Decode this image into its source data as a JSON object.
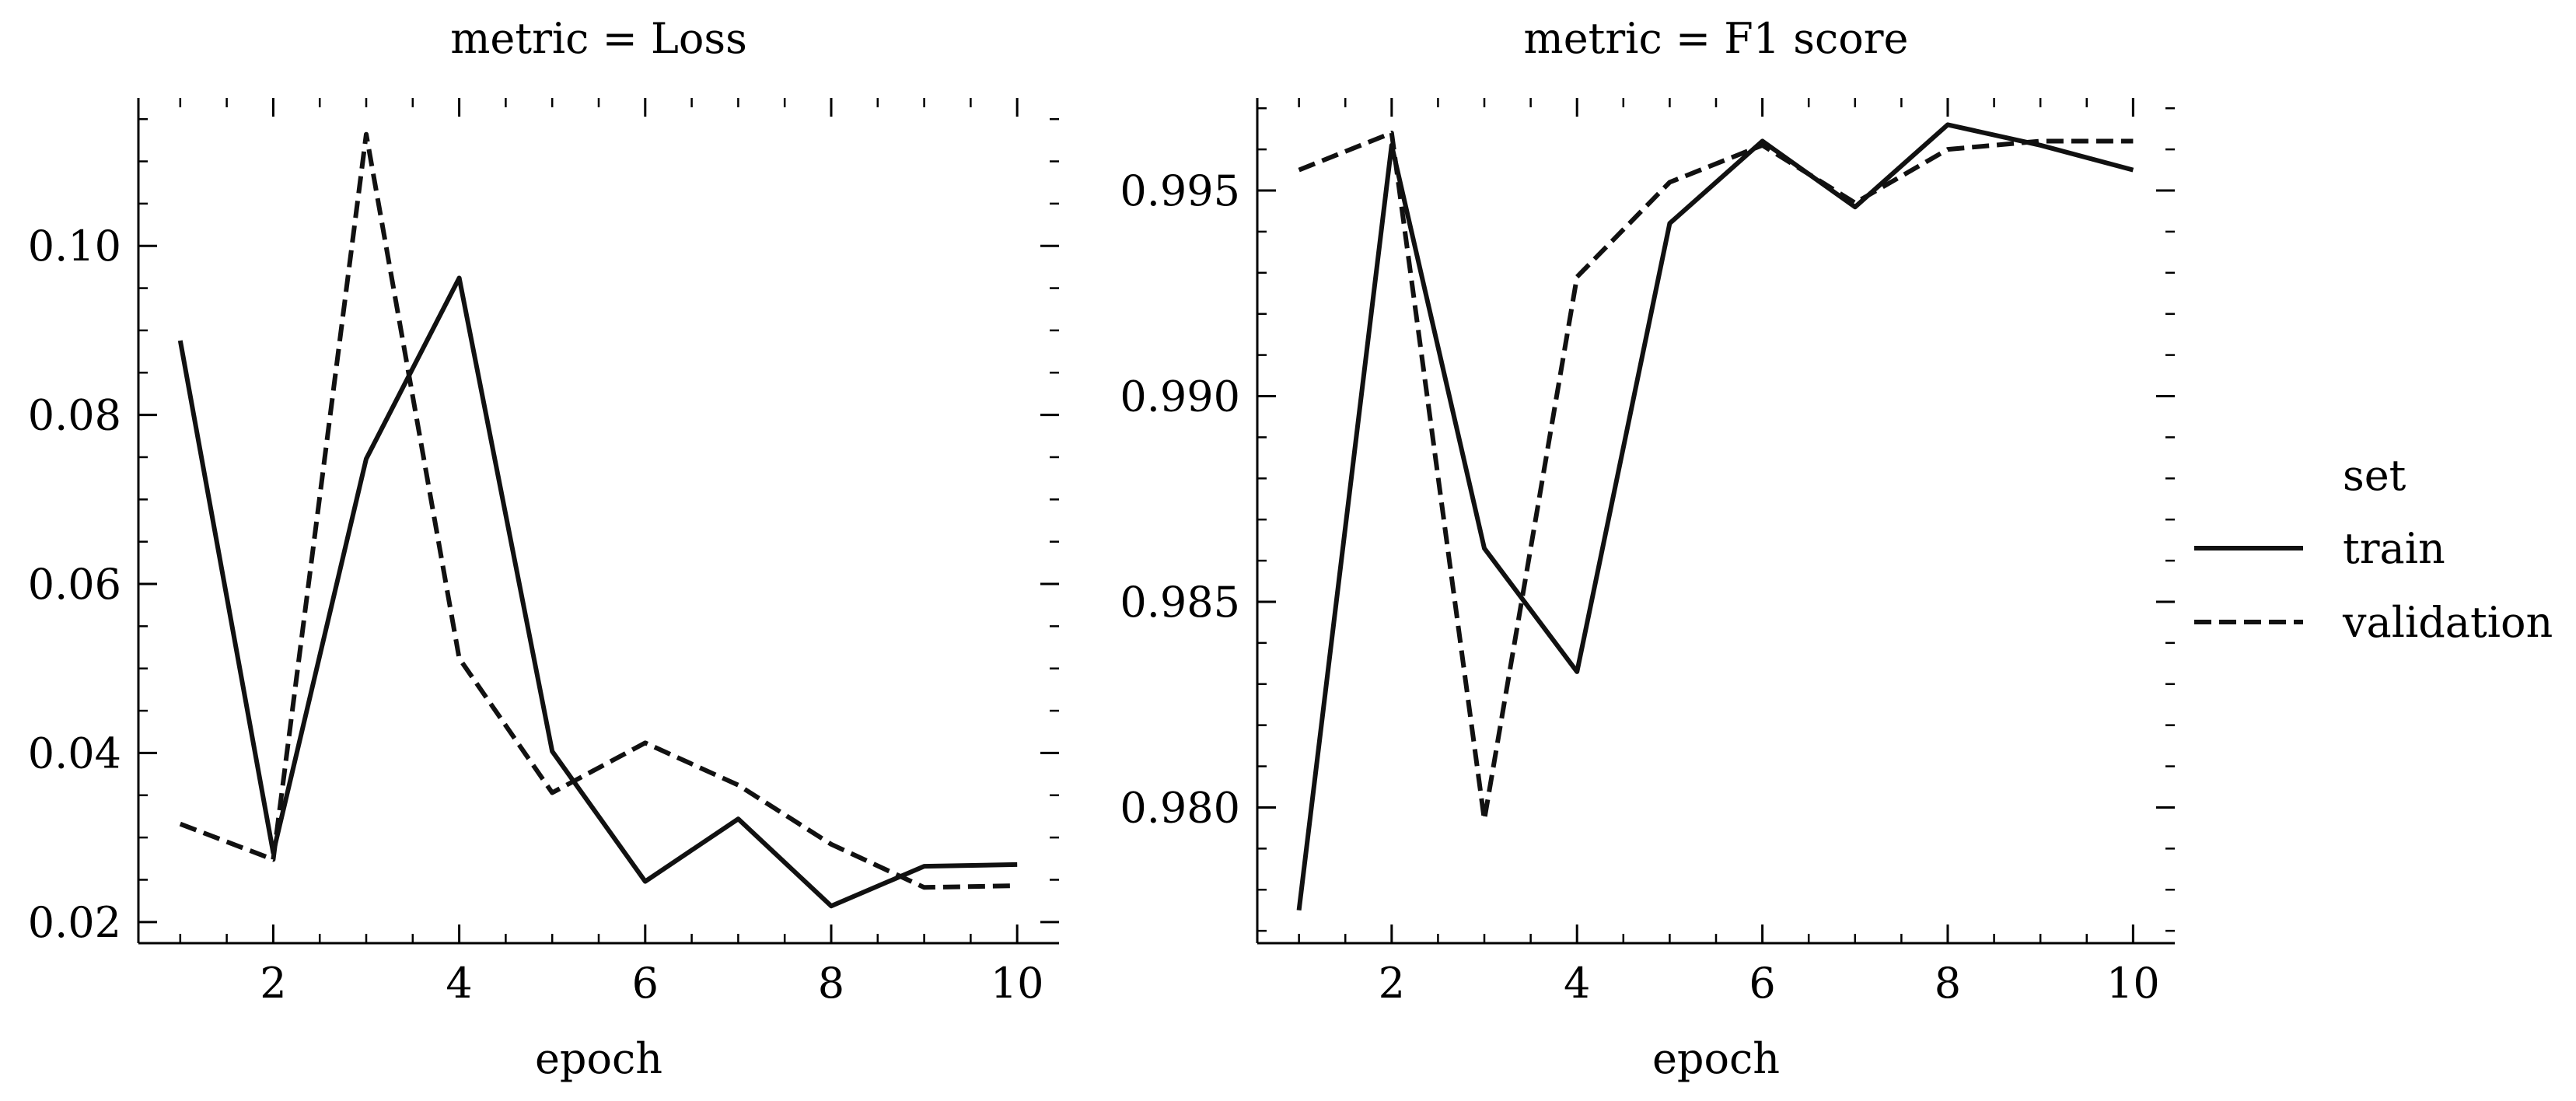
{
  "chart_data": [
    {
      "type": "line",
      "title": "metric = Loss",
      "xlabel": "epoch",
      "ylabel": "",
      "xlim": [
        0.55,
        10.45
      ],
      "ylim": [
        0.0175,
        0.1175
      ],
      "xticks": [
        2,
        4,
        6,
        8,
        10
      ],
      "xtick_labels": [
        "2",
        "4",
        "6",
        "8",
        "10"
      ],
      "yticks": [
        0.02,
        0.04,
        0.06,
        0.08,
        0.1
      ],
      "ytick_labels": [
        "0.02",
        "0.04",
        "0.06",
        "0.08",
        "0.10"
      ],
      "x": [
        1,
        2,
        3,
        4,
        5,
        6,
        7,
        8,
        9,
        10
      ],
      "series": [
        {
          "name": "train",
          "style": "solid",
          "values": [
            0.0888,
            0.0282,
            0.0748,
            0.0962,
            0.0402,
            0.0248,
            0.0322,
            0.0219,
            0.0266,
            0.0268
          ]
        },
        {
          "name": "validation",
          "style": "dashed",
          "values": [
            0.0316,
            0.0274,
            0.1132,
            0.0512,
            0.0353,
            0.0412,
            0.0362,
            0.0292,
            0.0241,
            0.0243
          ]
        }
      ],
      "grid": false
    },
    {
      "type": "line",
      "title": "metric = F1 score",
      "xlabel": "epoch",
      "ylabel": "",
      "xlim": [
        0.55,
        10.45
      ],
      "ylim": [
        0.9767,
        0.99725
      ],
      "xticks": [
        2,
        4,
        6,
        8,
        10
      ],
      "xtick_labels": [
        "2",
        "4",
        "6",
        "8",
        "10"
      ],
      "yticks": [
        0.98,
        0.985,
        0.99,
        0.995
      ],
      "ytick_labels": [
        "0.980",
        "0.985",
        "0.990",
        "0.995"
      ],
      "x": [
        1,
        2,
        3,
        4,
        5,
        6,
        7,
        8,
        9,
        10
      ],
      "series": [
        {
          "name": "train",
          "style": "solid",
          "values": [
            0.9775,
            0.9961,
            0.9863,
            0.9833,
            0.9942,
            0.9962,
            0.9946,
            0.9966,
            0.9961,
            0.9955
          ]
        },
        {
          "name": "validation",
          "style": "dashed",
          "values": [
            0.9955,
            0.9964,
            0.9797,
            0.9929,
            0.9952,
            0.9961,
            0.9947,
            0.996,
            0.9962,
            0.9962
          ]
        }
      ],
      "grid": false
    }
  ],
  "legend": {
    "title": "set",
    "entries": [
      {
        "label": "train",
        "style": "solid"
      },
      {
        "label": "validation",
        "style": "dashed"
      }
    ]
  },
  "colors": {
    "line": "#111111",
    "axis": "#000000",
    "background": "#ffffff"
  }
}
